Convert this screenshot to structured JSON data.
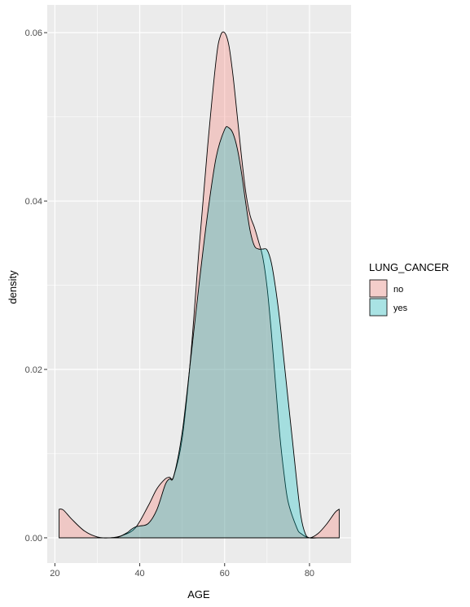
{
  "chart_data": {
    "type": "area",
    "subtype": "density",
    "title": "",
    "xlabel": "AGE",
    "ylabel": "density",
    "xlim": [
      18.2,
      89.8
    ],
    "ylim": [
      -0.003,
      0.0633
    ],
    "x_ticks": [
      20,
      40,
      60,
      80
    ],
    "x_tick_labels": [
      "20",
      "40",
      "60",
      "80"
    ],
    "y_ticks": [
      0,
      0.02,
      0.04,
      0.06
    ],
    "y_tick_labels": [
      "0.00",
      "0.02",
      "0.04",
      "0.06"
    ],
    "grid": true,
    "legend": {
      "title": "LUNG_CANCER",
      "placement": "right",
      "entries": [
        "no",
        "yes"
      ]
    },
    "fill_alpha": 0.3,
    "series": [
      {
        "name": "no",
        "color": "#F8766D",
        "x": [
          21,
          22,
          24,
          27,
          30,
          33,
          36,
          39,
          42,
          44,
          46,
          47,
          48,
          50,
          52,
          54,
          56,
          58,
          59,
          60,
          61,
          62,
          63,
          64,
          65,
          66,
          67,
          68,
          69,
          70,
          71,
          72,
          73,
          74,
          75,
          77,
          78,
          80,
          82,
          84,
          86,
          87
        ],
        "y": [
          0.0034,
          0.0033,
          0.0022,
          0.0008,
          0.0001,
          0.0,
          0.0003,
          0.0012,
          0.0038,
          0.0058,
          0.007,
          0.0072,
          0.0073,
          0.0118,
          0.0215,
          0.0345,
          0.0465,
          0.0568,
          0.0596,
          0.06,
          0.0585,
          0.0548,
          0.05,
          0.0452,
          0.041,
          0.0383,
          0.0369,
          0.0352,
          0.0333,
          0.0298,
          0.0245,
          0.0183,
          0.0122,
          0.0076,
          0.0042,
          0.0012,
          0.0005,
          0.0,
          0.0005,
          0.0016,
          0.003,
          0.0034
        ]
      },
      {
        "name": "yes",
        "color": "#00BFC4",
        "x": [
          21,
          25,
          30,
          33,
          35,
          37,
          38,
          39,
          40,
          42,
          44,
          46,
          47,
          48,
          50,
          52,
          54,
          56,
          58,
          60,
          61,
          62,
          63,
          64,
          65,
          66,
          67,
          68,
          69,
          70,
          71,
          72,
          73,
          74,
          75,
          76,
          77,
          78,
          79,
          80,
          82,
          84,
          86,
          87
        ],
        "y": [
          0.0,
          0.0,
          0.0,
          0.0,
          0.0001,
          0.0006,
          0.001,
          0.0013,
          0.0014,
          0.0017,
          0.0033,
          0.0063,
          0.007,
          0.0073,
          0.0125,
          0.0212,
          0.0302,
          0.0385,
          0.0452,
          0.0485,
          0.0487,
          0.048,
          0.0462,
          0.0433,
          0.0397,
          0.0365,
          0.0347,
          0.0343,
          0.0343,
          0.0342,
          0.0327,
          0.0297,
          0.0258,
          0.021,
          0.0162,
          0.0115,
          0.0067,
          0.0025,
          0.0005,
          0.0,
          0.0,
          0.0,
          0.0,
          0.0
        ]
      }
    ]
  }
}
